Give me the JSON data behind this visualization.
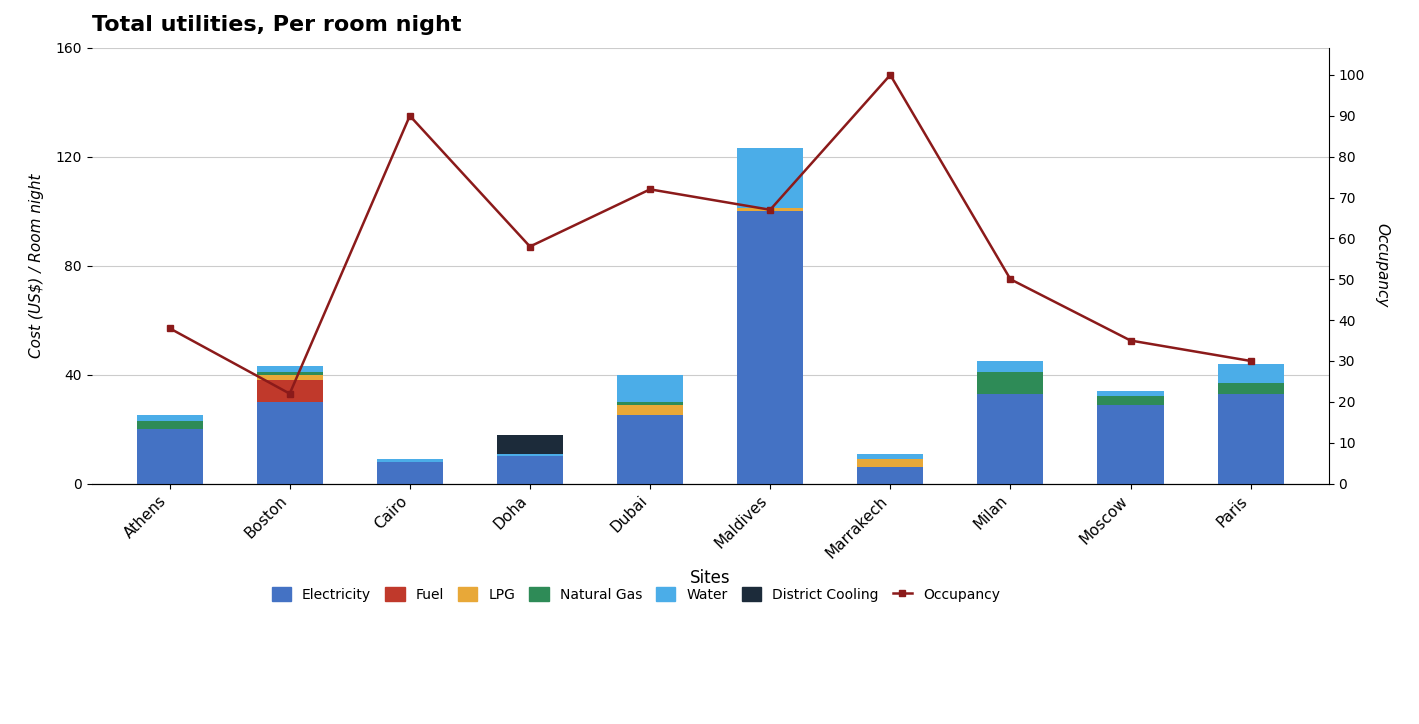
{
  "sites": [
    "Athens",
    "Boston",
    "Cairo",
    "Doha",
    "Dubai",
    "Maldives",
    "Marrakech",
    "Milan",
    "Moscow",
    "Paris"
  ],
  "electricity": [
    20,
    30,
    8,
    10,
    25,
    100,
    6,
    33,
    29,
    33
  ],
  "fuel": [
    0,
    8,
    0,
    0,
    0,
    0,
    0,
    0,
    0,
    0
  ],
  "lpg": [
    0,
    2,
    0,
    0,
    4,
    1,
    3,
    0,
    0,
    0
  ],
  "natural_gas": [
    3,
    1,
    0,
    0,
    1,
    0,
    0,
    8,
    3,
    4
  ],
  "water": [
    2,
    2,
    1,
    1,
    10,
    22,
    2,
    4,
    2,
    7
  ],
  "district_cooling": [
    0,
    0,
    0,
    7,
    0,
    0,
    0,
    0,
    0,
    0
  ],
  "occupancy": [
    38,
    22,
    90,
    58,
    72,
    67,
    100,
    50,
    35,
    30
  ],
  "colors": {
    "electricity": "#4472C4",
    "fuel": "#C0392B",
    "lpg": "#E8A838",
    "natural_gas": "#2E8B57",
    "water": "#4BADE8",
    "district_cooling": "#1C2B3A",
    "occupancy": "#8B1A1A"
  },
  "title": "Total utilities, Per room night",
  "xlabel": "Sites",
  "ylabel_left": "Cost (US$) / Room night",
  "ylabel_right": "Occupancy",
  "ylim_left": [
    0,
    160
  ],
  "ylim_right": [
    0,
    106.67
  ],
  "yticks_left": [
    0,
    40,
    80,
    120,
    160
  ],
  "yticks_right": [
    0,
    10,
    20,
    30,
    40,
    50,
    60,
    70,
    80,
    90,
    100
  ],
  "background_color": "#FFFFFF"
}
